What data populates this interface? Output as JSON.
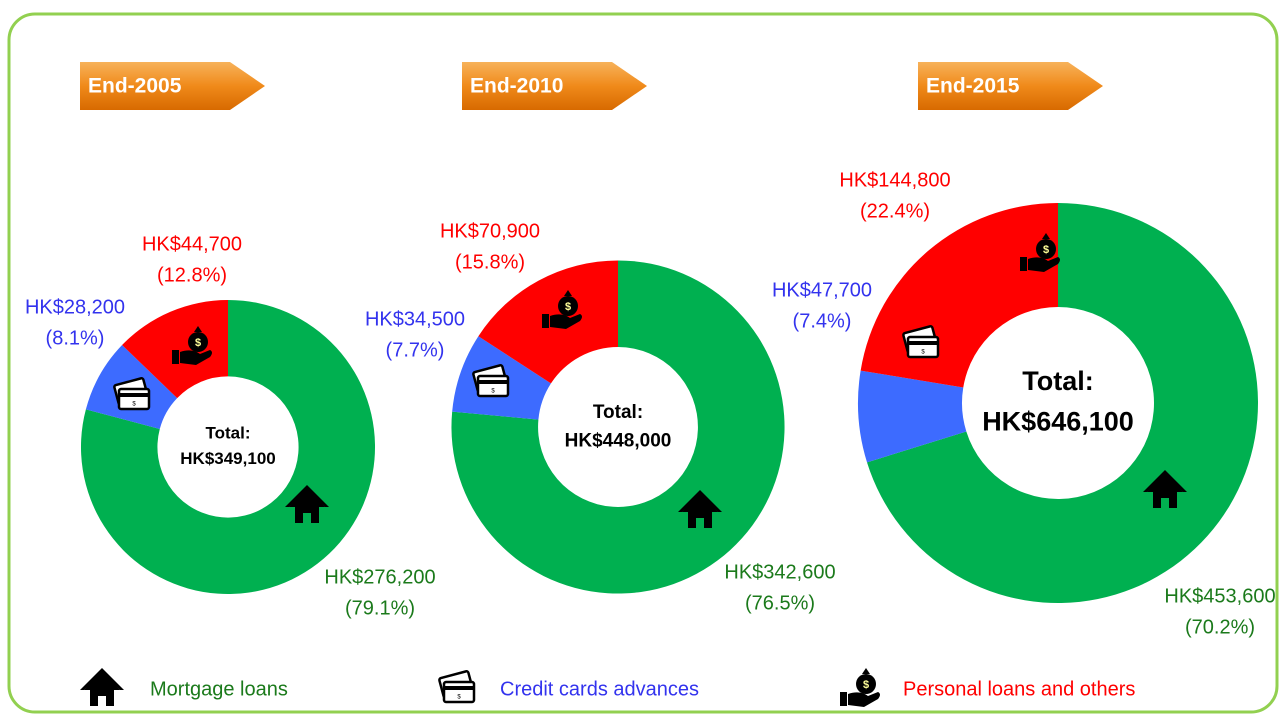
{
  "legend": [
    {
      "name": "Mortgage loans",
      "color": "#00b050",
      "text_color": "#1b7a1b"
    },
    {
      "name": "Credit cards advances",
      "color": "#3d6bff",
      "text_color": "#3333ee"
    },
    {
      "name": "Personal loans and others",
      "color": "#ff0000",
      "text_color": "#ff0000"
    }
  ],
  "chart_data": [
    {
      "type": "donut",
      "title": "End-2005",
      "total_label": "Total:",
      "total": 349100,
      "total_value_label": "HK$349,100",
      "values": [
        276200,
        28200,
        44700
      ],
      "value_labels": [
        "HK$276,200",
        "HK$28,200",
        "HK$44,700"
      ],
      "percents": [
        79.1,
        8.1,
        12.8
      ],
      "percent_labels": [
        "(79.1%)",
        "(8.1%)",
        "(12.8%)"
      ]
    },
    {
      "type": "donut",
      "title": "End-2010",
      "total_label": "Total:",
      "total": 448000,
      "total_value_label": "HK$448,000",
      "values": [
        342600,
        34500,
        70900
      ],
      "value_labels": [
        "HK$342,600",
        "HK$34,500",
        "HK$70,900"
      ],
      "percents": [
        76.5,
        7.7,
        15.8
      ],
      "percent_labels": [
        "(76.5%)",
        "(7.7%)",
        "(15.8%)"
      ]
    },
    {
      "type": "donut",
      "title": "End-2015",
      "total_label": "Total:",
      "total": 646100,
      "total_value_label": "HK$646,100",
      "values": [
        453600,
        47700,
        144800
      ],
      "value_labels": [
        "HK$453,600",
        "HK$47,700",
        "HK$144,800"
      ],
      "percents": [
        70.2,
        7.4,
        22.4
      ],
      "percent_labels": [
        "(70.2%)",
        "(7.4%)",
        "(22.4%)"
      ]
    }
  ]
}
